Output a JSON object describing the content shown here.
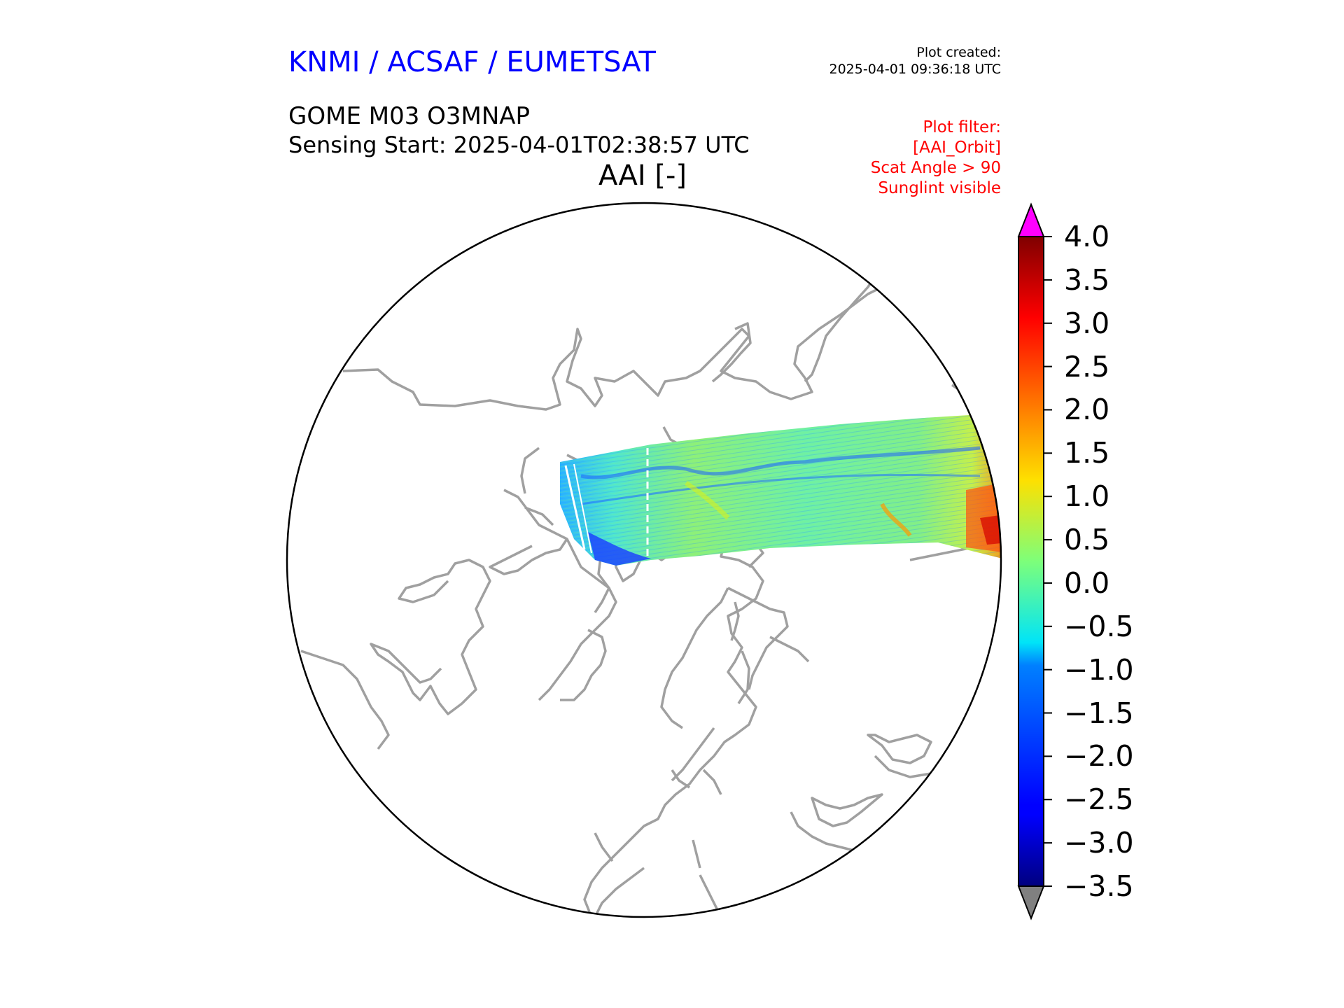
{
  "header": {
    "organization": "KNMI / ACSAF / EUMETSAT",
    "organization_color": "#0000ff",
    "plot_created_label": "Plot created:",
    "plot_created_time": "2025-04-01 09:36:18 UTC",
    "product": "GOME M03 O3MNAP",
    "sensing_start": "Sensing Start: 2025-04-01T02:38:57 UTC"
  },
  "filter": {
    "color": "#ff0000",
    "lines": [
      "Plot filter:",
      "[AAI_Orbit]",
      "Scat Angle > 90",
      "Sunglint visible"
    ]
  },
  "map": {
    "title": "AAI [-]",
    "projection": "north polar stereographic",
    "coastline_color": "#a0a0a0",
    "swath": {
      "description": "single orbit swath",
      "value_range": [
        -2.5,
        4.0
      ]
    }
  },
  "colorbar": {
    "colormap": "jet",
    "min": -3.5,
    "max": 4.0,
    "ticks": [
      "4.0",
      "3.5",
      "3.0",
      "2.5",
      "2.0",
      "1.5",
      "1.0",
      "0.5",
      "0.0",
      "−0.5",
      "−1.0",
      "−1.5",
      "−2.0",
      "−2.5",
      "−3.0",
      "−3.5"
    ],
    "over_color": "#ff00ff",
    "under_color": "#808080"
  }
}
